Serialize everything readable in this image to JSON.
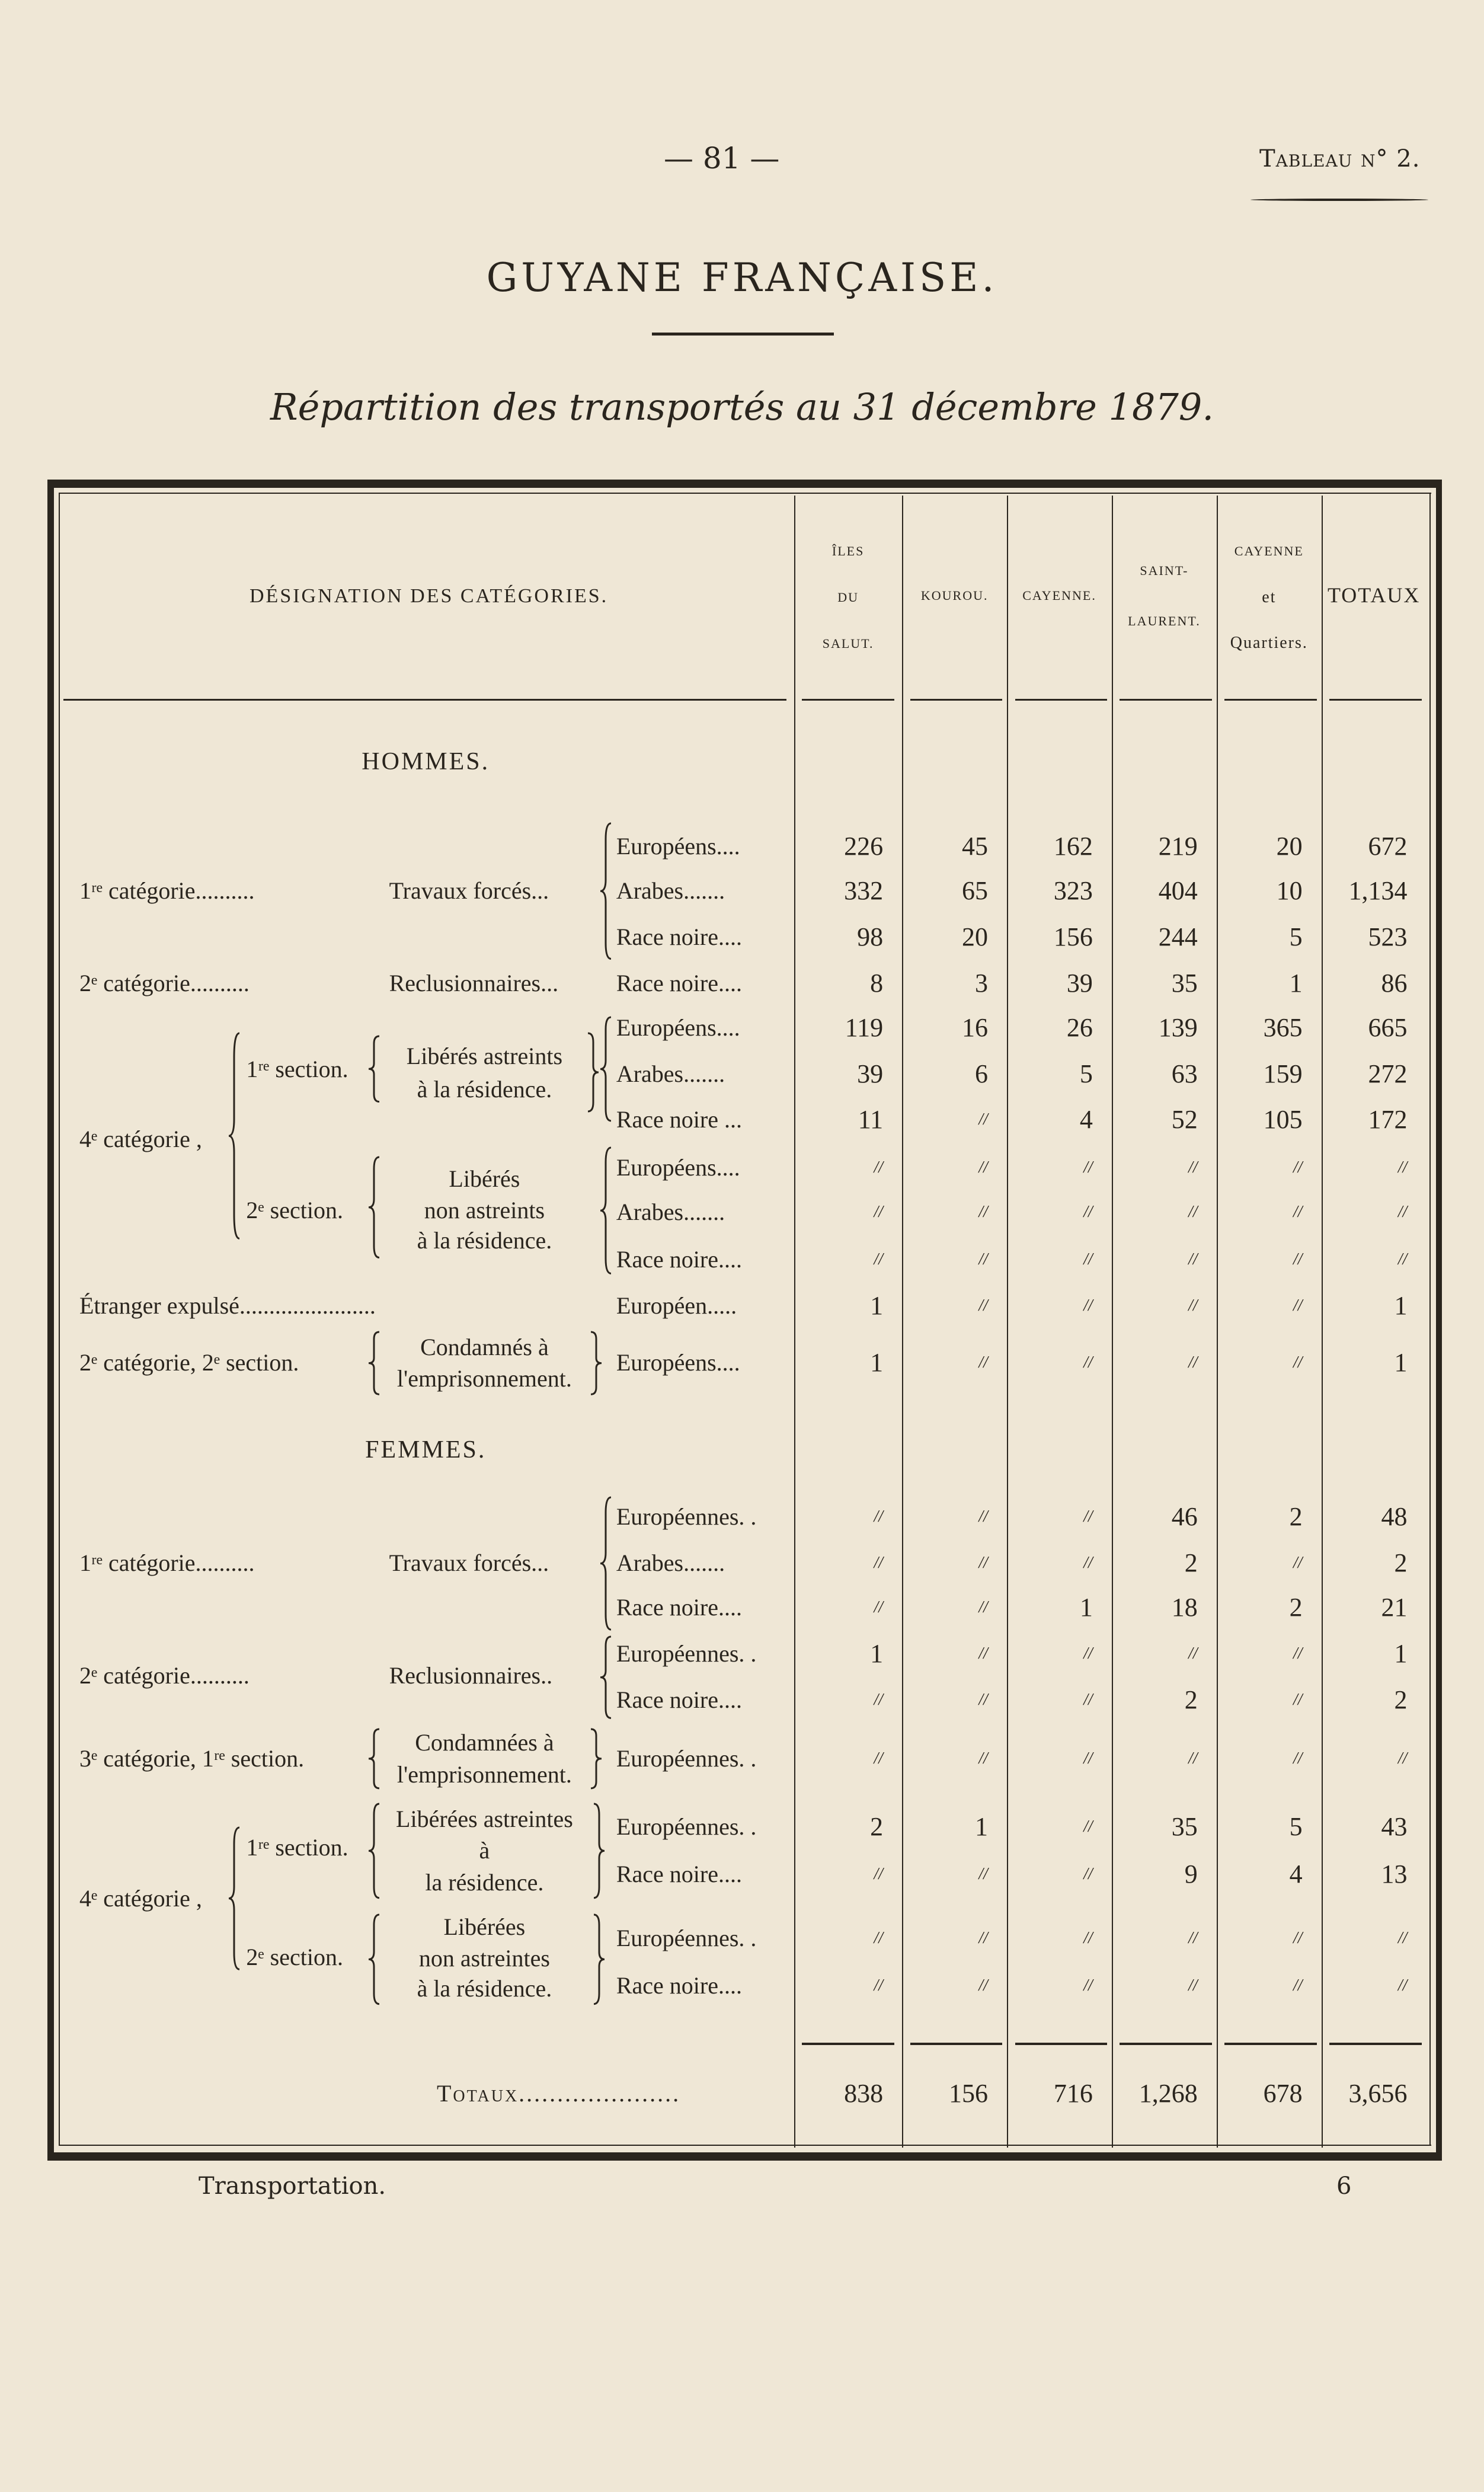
{
  "page_number": "— 81 —",
  "table_ref": "Tableau n° 2.",
  "title": "GUYANE FRANÇAISE.",
  "subtitle": "Répartition des transportés au 31 décembre 1879.",
  "header": {
    "designation": "DÉSIGNATION DES CATÉGORIES.",
    "columns": [
      [
        "ÎLES",
        "DU",
        "SALUT."
      ],
      [
        "KOUROU."
      ],
      [
        "CAYENNE."
      ],
      [
        "SAINT-",
        "LAURENT."
      ],
      [
        "CAYENNE",
        "et",
        "Quartiers."
      ],
      [
        "TOTAUX"
      ]
    ]
  },
  "sections": {
    "hommes": "HOMMES.",
    "femmes": "FEMMES."
  },
  "groups": [
    "1ʳᵉ catégorie..........",
    "Travaux forcés...",
    "2ᵉ catégorie..........",
    "Reclusionnaires...",
    "4ᵉ catégorie ,",
    "1ʳᵉ section.",
    "Libérés astreints",
    "à la résidence.",
    "2ᵉ section.",
    "Libérés",
    "non astreints",
    "à la résidence.",
    "Étranger expulsé.......................",
    "2ᵉ catégorie, 2ᵉ section.",
    "Condamnés à",
    "l'emprisonnement.",
    "1ʳᵉ catégorie..........",
    "Travaux forcés...",
    "2ᵉ catégorie..........",
    "Reclusionnaires..",
    "3ᵉ catégorie, 1ʳᵉ section.",
    "Condamnées à",
    "l'emprisonnement.",
    "4ᵉ catégorie ,",
    "1ʳᵉ section.",
    "Libérées astreintes",
    "à",
    "la résidence.",
    "2ᵉ section.",
    "Libérées",
    "non astreintes",
    "à la résidence."
  ],
  "rows": [
    {
      "race": "Européens....",
      "values": [
        "226",
        "45",
        "162",
        "219",
        "20",
        "672"
      ]
    },
    {
      "race": "Arabes.......",
      "values": [
        "332",
        "65",
        "323",
        "404",
        "10",
        "1,134"
      ]
    },
    {
      "race": "Race noire....",
      "values": [
        "98",
        "20",
        "156",
        "244",
        "5",
        "523"
      ]
    },
    {
      "race": "Race noire....",
      "values": [
        "8",
        "3",
        "39",
        "35",
        "1",
        "86"
      ]
    },
    {
      "race": "Européens....",
      "values": [
        "119",
        "16",
        "26",
        "139",
        "365",
        "665"
      ]
    },
    {
      "race": "Arabes.......",
      "values": [
        "39",
        "6",
        "5",
        "63",
        "159",
        "272"
      ]
    },
    {
      "race": "Race noire ...",
      "values": [
        "11",
        "//",
        "4",
        "52",
        "105",
        "172"
      ]
    },
    {
      "race": "Européens....",
      "values": [
        "//",
        "//",
        "//",
        "//",
        "//",
        "//"
      ]
    },
    {
      "race": "Arabes.......",
      "values": [
        "//",
        "//",
        "//",
        "//",
        "//",
        "//"
      ]
    },
    {
      "race": "Race noire....",
      "values": [
        "//",
        "//",
        "//",
        "//",
        "//",
        "//"
      ]
    },
    {
      "race": "Européen.....",
      "values": [
        "1",
        "//",
        "//",
        "//",
        "//",
        "1"
      ]
    },
    {
      "race": "Européens....",
      "values": [
        "1",
        "//",
        "//",
        "//",
        "//",
        "1"
      ]
    },
    {
      "race": "Européennes. .",
      "values": [
        "//",
        "//",
        "//",
        "46",
        "2",
        "48"
      ]
    },
    {
      "race": "Arabes.......",
      "values": [
        "//",
        "//",
        "//",
        "2",
        "//",
        "2"
      ]
    },
    {
      "race": "Race noire....",
      "values": [
        "//",
        "//",
        "1",
        "18",
        "2",
        "21"
      ]
    },
    {
      "race": "Européennes. .",
      "values": [
        "1",
        "//",
        "//",
        "//",
        "//",
        "1"
      ]
    },
    {
      "race": "Race noire....",
      "values": [
        "//",
        "//",
        "//",
        "2",
        "//",
        "2"
      ]
    },
    {
      "race": "Européennes. .",
      "values": [
        "//",
        "//",
        "//",
        "//",
        "//",
        "//"
      ]
    },
    {
      "race": "Européennes. .",
      "values": [
        "2",
        "1",
        "//",
        "35",
        "5",
        "43"
      ]
    },
    {
      "race": "Race noire....",
      "values": [
        "//",
        "//",
        "//",
        "9",
        "4",
        "13"
      ]
    },
    {
      "race": "Européennes. .",
      "values": [
        "//",
        "//",
        "//",
        "//",
        "//",
        "//"
      ]
    },
    {
      "race": "Race noire....",
      "values": [
        "//",
        "//",
        "//",
        "//",
        "//",
        "//"
      ]
    }
  ],
  "totals": {
    "label": "Totaux.....................",
    "values": [
      "838",
      "156",
      "716",
      "1,268",
      "678",
      "3,656"
    ]
  },
  "footer": {
    "left": "Transportation.",
    "right": "6"
  }
}
